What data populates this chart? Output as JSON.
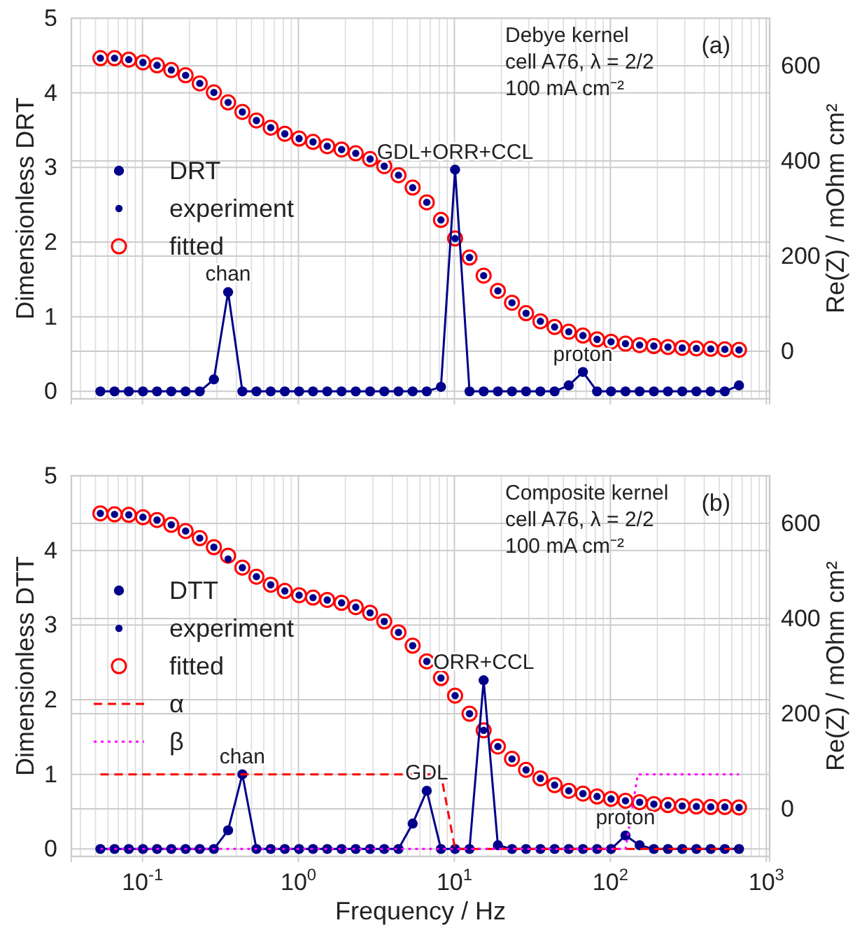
{
  "chart_data": [
    {
      "type": "line",
      "log": "x",
      "grid": true,
      "legend": "center left",
      "tick_labels": "y",
      "x": [
        0.0537,
        0.0662,
        0.0817,
        0.1007,
        0.124,
        0.153,
        0.189,
        0.233,
        0.287,
        0.354,
        0.437,
        0.538,
        0.664,
        0.818,
        1.01,
        1.24,
        1.53,
        1.89,
        2.33,
        2.88,
        3.55,
        4.38,
        5.4,
        6.65,
        8.2,
        10.1,
        12.5,
        15.4,
        19.0,
        23.4,
        28.8,
        35.6,
        43.9,
        54.1,
        66.7,
        82.2,
        101,
        125,
        154,
        190,
        234,
        289,
        356,
        440,
        542,
        668
      ],
      "xlim": [
        0.035,
        1050
      ],
      "xticks": [
        0.1,
        1,
        10,
        100,
        1000
      ],
      "ylim": [
        -0.1,
        5
      ],
      "yticks": [
        0,
        1,
        2,
        3,
        4,
        5
      ],
      "y2lim": [
        -100,
        700
      ],
      "y2ticks": [
        0,
        200,
        400,
        600
      ],
      "ylabel": "Dimensionless DRT",
      "y2label": "Re(Z) / mOhm cm²",
      "series": [
        {
          "name": "DRT",
          "type": "line",
          "marker": "circle",
          "line_style": "solid",
          "color": "#00008b",
          "values": [
            0,
            0,
            0,
            0,
            0,
            0,
            0,
            0,
            0.16,
            1.33,
            0,
            0,
            0,
            0,
            0,
            0,
            0,
            0,
            0,
            0,
            0,
            0,
            0,
            0,
            0.06,
            2.97,
            0,
            0,
            0,
            0,
            0,
            0,
            0,
            0.08,
            0.26,
            0,
            0,
            0,
            0,
            0,
            0,
            0,
            0,
            0,
            0,
            0.08
          ]
        },
        {
          "name": "experiment",
          "type": "scatter",
          "axis": "y2",
          "marker": "circle",
          "color": "#00008b",
          "values": [
            616,
            616,
            613,
            607,
            601,
            591,
            580,
            563,
            544,
            523,
            503,
            485,
            470,
            457,
            447,
            440,
            431,
            424,
            416,
            404,
            389,
            370,
            344,
            313,
            276,
            237,
            197,
            159,
            127,
            102,
            80,
            63,
            51,
            41,
            33,
            25,
            20,
            16,
            13,
            11,
            9,
            7,
            6,
            5,
            4,
            3
          ]
        },
        {
          "name": "fitted",
          "type": "scatter",
          "axis": "y2",
          "marker": "circle",
          "color": "#ff0000",
          "values": [
            616,
            616,
            613,
            607,
            601,
            591,
            580,
            563,
            544,
            523,
            503,
            485,
            470,
            457,
            447,
            440,
            431,
            424,
            416,
            404,
            389,
            370,
            344,
            313,
            276,
            237,
            197,
            159,
            127,
            102,
            80,
            63,
            51,
            41,
            33,
            25,
            20,
            16,
            13,
            11,
            9,
            7,
            6,
            5,
            4,
            3
          ]
        }
      ],
      "annotations": [
        "Debye kernel",
        "cell A76, λ = 2/2",
        "100 mA cm⁻²",
        "(a)",
        {
          "text": "chan",
          "x": 0.354,
          "y": 1.33
        },
        {
          "text": "GDL+ORR+CCL",
          "x": 10.1,
          "y": 2.97
        },
        {
          "text": "proton",
          "x": 66.7,
          "y": 0.26
        }
      ]
    },
    {
      "type": "line",
      "log": "x",
      "grid": true,
      "legend": "center left",
      "x": [
        0.0537,
        0.0662,
        0.0817,
        0.1007,
        0.124,
        0.153,
        0.189,
        0.233,
        0.287,
        0.354,
        0.437,
        0.538,
        0.664,
        0.818,
        1.01,
        1.24,
        1.53,
        1.89,
        2.33,
        2.88,
        3.55,
        4.38,
        5.4,
        6.65,
        8.2,
        10.1,
        12.5,
        15.4,
        19.0,
        23.4,
        28.8,
        35.6,
        43.9,
        54.1,
        66.7,
        82.2,
        101,
        125,
        154,
        190,
        234,
        289,
        356,
        440,
        542,
        668
      ],
      "xlim": [
        0.035,
        1050
      ],
      "xticks": [
        {
          "value": 0.1,
          "label": "10$^{-1}$"
        },
        {
          "value": 1,
          "label": "10$^{0}$"
        },
        {
          "value": 10,
          "label": "10$^{1}$"
        },
        {
          "value": 100,
          "label": "10$^{2}$"
        },
        {
          "value": 1000,
          "label": "10$^{3}$"
        }
      ],
      "ylim": [
        -0.1,
        5
      ],
      "yticks": [
        0,
        1,
        2,
        3,
        4,
        5
      ],
      "y2lim": [
        -100,
        700
      ],
      "y2ticks": [
        0,
        200,
        400,
        600
      ],
      "xlabel": "Frequency / Hz",
      "ylabel": "Dimensionless DTT",
      "y2label": "Re(Z) / mOhm cm²",
      "series": [
        {
          "name": "DTT",
          "type": "line",
          "marker": "circle",
          "line_style": "solid",
          "color": "#00008b",
          "values": [
            0,
            0,
            0,
            0,
            0,
            0,
            0,
            0,
            0,
            0.25,
            1.0,
            0,
            0,
            0,
            0,
            0,
            0,
            0,
            0,
            0,
            0,
            0,
            0.34,
            0.78,
            0,
            0,
            0,
            2.26,
            0.05,
            0,
            0,
            0,
            0,
            0,
            0,
            0,
            0,
            0.18,
            0.05,
            0,
            0,
            0,
            0,
            0,
            0,
            0
          ]
        },
        {
          "name": "experiment",
          "type": "scatter",
          "axis": "y2",
          "marker": "circle",
          "color": "#00008b",
          "values": [
            621,
            619,
            618,
            613,
            607,
            597,
            584,
            569,
            550,
            525,
            507,
            488,
            471,
            458,
            449,
            444,
            439,
            433,
            424,
            412,
            394,
            371,
            343,
            310,
            275,
            238,
            200,
            165,
            131,
            105,
            82,
            64,
            50,
            38,
            32,
            26,
            21,
            17,
            14,
            10,
            8,
            6,
            5,
            4,
            4,
            3
          ]
        },
        {
          "name": "fitted",
          "type": "scatter",
          "axis": "y2",
          "marker": "circle",
          "color": "#ff0000",
          "values": [
            621,
            619,
            618,
            613,
            607,
            597,
            584,
            569,
            550,
            532,
            507,
            488,
            471,
            458,
            449,
            444,
            439,
            433,
            424,
            412,
            394,
            371,
            343,
            310,
            275,
            238,
            200,
            165,
            131,
            105,
            82,
            64,
            50,
            38,
            32,
            26,
            21,
            17,
            14,
            10,
            8,
            6,
            5,
            4,
            4,
            3
          ]
        },
        {
          "name": "α",
          "type": "line",
          "marker": "none",
          "line_style": "dashed",
          "color": "#ff0000",
          "x": [
            0.0537,
            8.2,
            10.1,
            668
          ],
          "values": [
            1,
            1,
            0,
            0
          ]
        },
        {
          "name": "β",
          "type": "line",
          "marker": "none",
          "line_style": "dotted",
          "color": "#ff00ff",
          "x": [
            0.0537,
            125,
            150,
            668
          ],
          "values": [
            0,
            0,
            1,
            1
          ]
        }
      ],
      "annotations": [
        "Composite kernel",
        "cell A76, λ = 2/2",
        "100 mA cm⁻²",
        "(b)",
        {
          "text": "chan",
          "x": 0.437,
          "y": 1.0
        },
        {
          "text": "GDL",
          "x": 6.65,
          "y": 0.78
        },
        {
          "text": "ORR+CCL",
          "x": 15.4,
          "y": 2.26
        },
        {
          "text": "proton",
          "x": 125,
          "y": 0.18
        }
      ]
    }
  ]
}
